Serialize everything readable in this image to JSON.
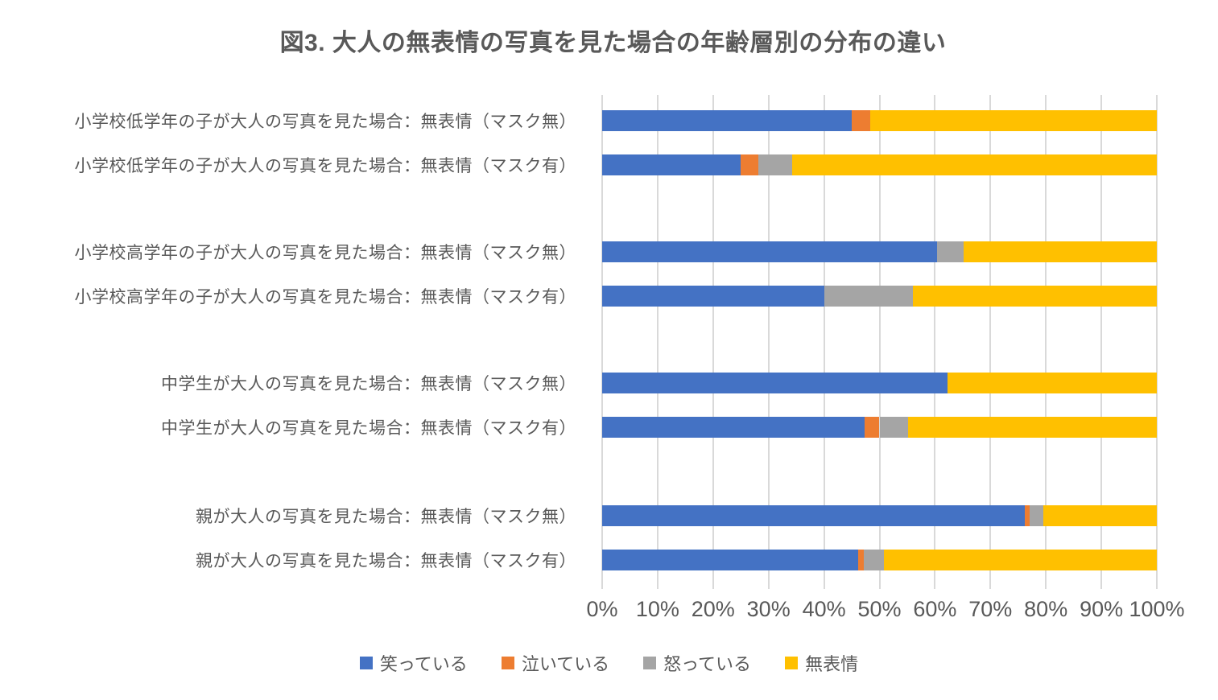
{
  "page": {
    "background": "#FFFFFF"
  },
  "chart_data": {
    "type": "bar",
    "orientation": "horizontal",
    "stacked": true,
    "stacked_mode": "percent-100",
    "title": "図3. 大人の無表情の写真を見た場合の年齢層別の分布の違い",
    "title_color": "#595959",
    "categories": [
      "小学校低学年の子が大人の写真を見た場合：無表情（マスク無）",
      "小学校低学年の子が大人の写真を見た場合：無表情（マスク有）",
      "小学校高学年の子が大人の写真を見た場合：無表情（マスク無）",
      "小学校高学年の子が大人の写真を見た場合：無表情（マスク有）",
      "中学生が大人の写真を見た場合：無表情（マスク無）",
      "中学生が大人の写真を見た場合：無表情（マスク有）",
      "親が大人の写真を見た場合：無表情（マスク無）",
      "親が大人の写真を見た場合：無表情（マスク有）"
    ],
    "series": [
      {
        "name": "笑っている",
        "color": "#4472C4",
        "values": [
          45.0,
          25.0,
          60.4,
          40.0,
          62.2,
          47.3,
          76.2,
          46.2
        ]
      },
      {
        "name": "泣いている",
        "color": "#ED7D31",
        "values": [
          3.3,
          3.2,
          0,
          0,
          0,
          2.7,
          0.8,
          0.9
        ]
      },
      {
        "name": "怒っている",
        "color": "#A5A5A5",
        "values": [
          0,
          6.1,
          4.8,
          16.0,
          0,
          5.1,
          2.6,
          3.7
        ]
      },
      {
        "name": "無表情",
        "color": "#FFC000",
        "values": [
          51.7,
          65.7,
          34.8,
          44.0,
          37.8,
          44.9,
          20.4,
          49.2
        ]
      }
    ],
    "x_ticks": [
      "0%",
      "10%",
      "20%",
      "30%",
      "40%",
      "50%",
      "60%",
      "70%",
      "80%",
      "90%",
      "100%"
    ],
    "xlim": [
      0,
      100
    ],
    "grid": true,
    "gridline_color": "#D9D9D9",
    "axis_label_color": "#595959",
    "category_label_color": "#595959",
    "legend_position": "bottom"
  }
}
